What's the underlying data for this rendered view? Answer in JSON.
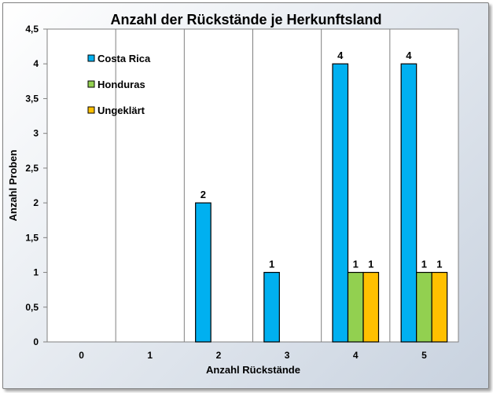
{
  "chart_data": {
    "type": "bar",
    "title": "Anzahl der Rückstände je Herkunftsland",
    "xlabel": "Anzahl Rückstände",
    "ylabel": "Anzahl Proben",
    "categories": [
      "0",
      "1",
      "2",
      "3",
      "4",
      "5"
    ],
    "series": [
      {
        "name": "Costa Rica",
        "color": "#00b0f0",
        "values": [
          0,
          0,
          2,
          1,
          4,
          4
        ]
      },
      {
        "name": "Honduras",
        "color": "#92d050",
        "values": [
          0,
          0,
          0,
          0,
          1,
          1
        ]
      },
      {
        "name": "Ungeklärt",
        "color": "#ffc000",
        "values": [
          0,
          0,
          0,
          0,
          1,
          1
        ]
      }
    ],
    "ylim": [
      0,
      4.5
    ],
    "yticks": [
      "0",
      "0,5",
      "1",
      "1,5",
      "2",
      "2,5",
      "3",
      "3,5",
      "4",
      "4,5"
    ],
    "grid": "vertical category separators",
    "legend": "top-left inside plot"
  }
}
